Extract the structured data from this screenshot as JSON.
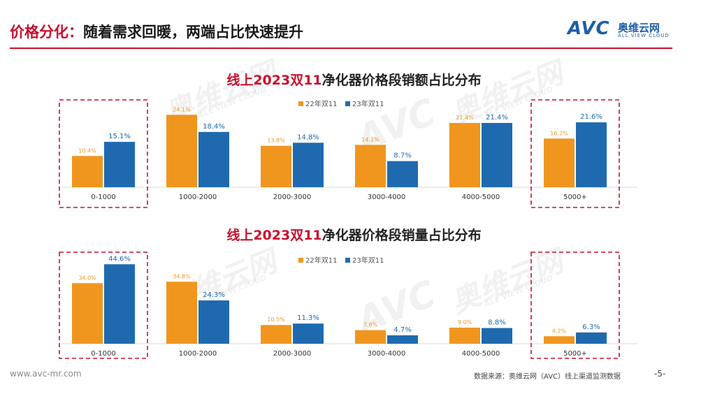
{
  "header": {
    "title_prefix": "价格分化：",
    "title_rest": "随着需求回暖，两端占比快速提升",
    "logo_text": "AVC",
    "logo_cn": "奥维云网",
    "logo_en": "ALL VIEW CLOUD"
  },
  "footer": {
    "url": "www.avc-mr.com",
    "source": "数据来源：奥维云网（AVC）线上渠道监测数据",
    "page": "-5-"
  },
  "watermark": {
    "cn": "奥维云网",
    "en": "ALL VIEW CLOUD",
    "avc": "AVC"
  },
  "colors": {
    "series1": "#F0961E",
    "series2": "#1F6AAF",
    "highlight": "#C8102E"
  },
  "chart_data": [
    {
      "type": "bar",
      "title_red": "线上2023双11",
      "title_rest": "净化器价格段销额占比分布",
      "categories": [
        "0-1000",
        "1000-2000",
        "2000-3000",
        "3000-4000",
        "4000-5000",
        "5000+"
      ],
      "series": [
        {
          "name": "22年双11",
          "values": [
            10.4,
            24.1,
            13.8,
            14.1,
            21.4,
            16.2
          ],
          "labels": [
            "10.4%",
            "24.1%",
            "13.8%",
            "14.1%",
            "21.4%",
            "16.2%"
          ]
        },
        {
          "name": "23年双11",
          "values": [
            15.1,
            18.4,
            14.8,
            8.7,
            21.4,
            21.6
          ],
          "labels": [
            "15.1%",
            "18.4%",
            "14.8%",
            "8.7%",
            "21.4%",
            "21.6%"
          ]
        }
      ],
      "highlighted": [
        "0-1000",
        "5000+"
      ],
      "legend": "top-center"
    },
    {
      "type": "bar",
      "title_red": "线上2023双11",
      "title_rest": "净化器价格段销量占比分布",
      "categories": [
        "0-1000",
        "1000-2000",
        "2000-3000",
        "3000-4000",
        "4000-5000",
        "5000+"
      ],
      "series": [
        {
          "name": "22年双11",
          "values": [
            34.0,
            34.8,
            10.5,
            7.6,
            9.0,
            4.2
          ],
          "labels": [
            "34.0%",
            "34.8%",
            "10.5%",
            "7.6%",
            "9.0%",
            "4.2%"
          ]
        },
        {
          "name": "23年双11",
          "values": [
            44.6,
            24.3,
            11.3,
            4.7,
            8.8,
            6.3
          ],
          "labels": [
            "44.6%",
            "24.3%",
            "11.3%",
            "4.7%",
            "8.8%",
            "6.3%"
          ]
        }
      ],
      "highlighted": [
        "0-1000",
        "5000+"
      ],
      "legend": "top-center"
    }
  ]
}
